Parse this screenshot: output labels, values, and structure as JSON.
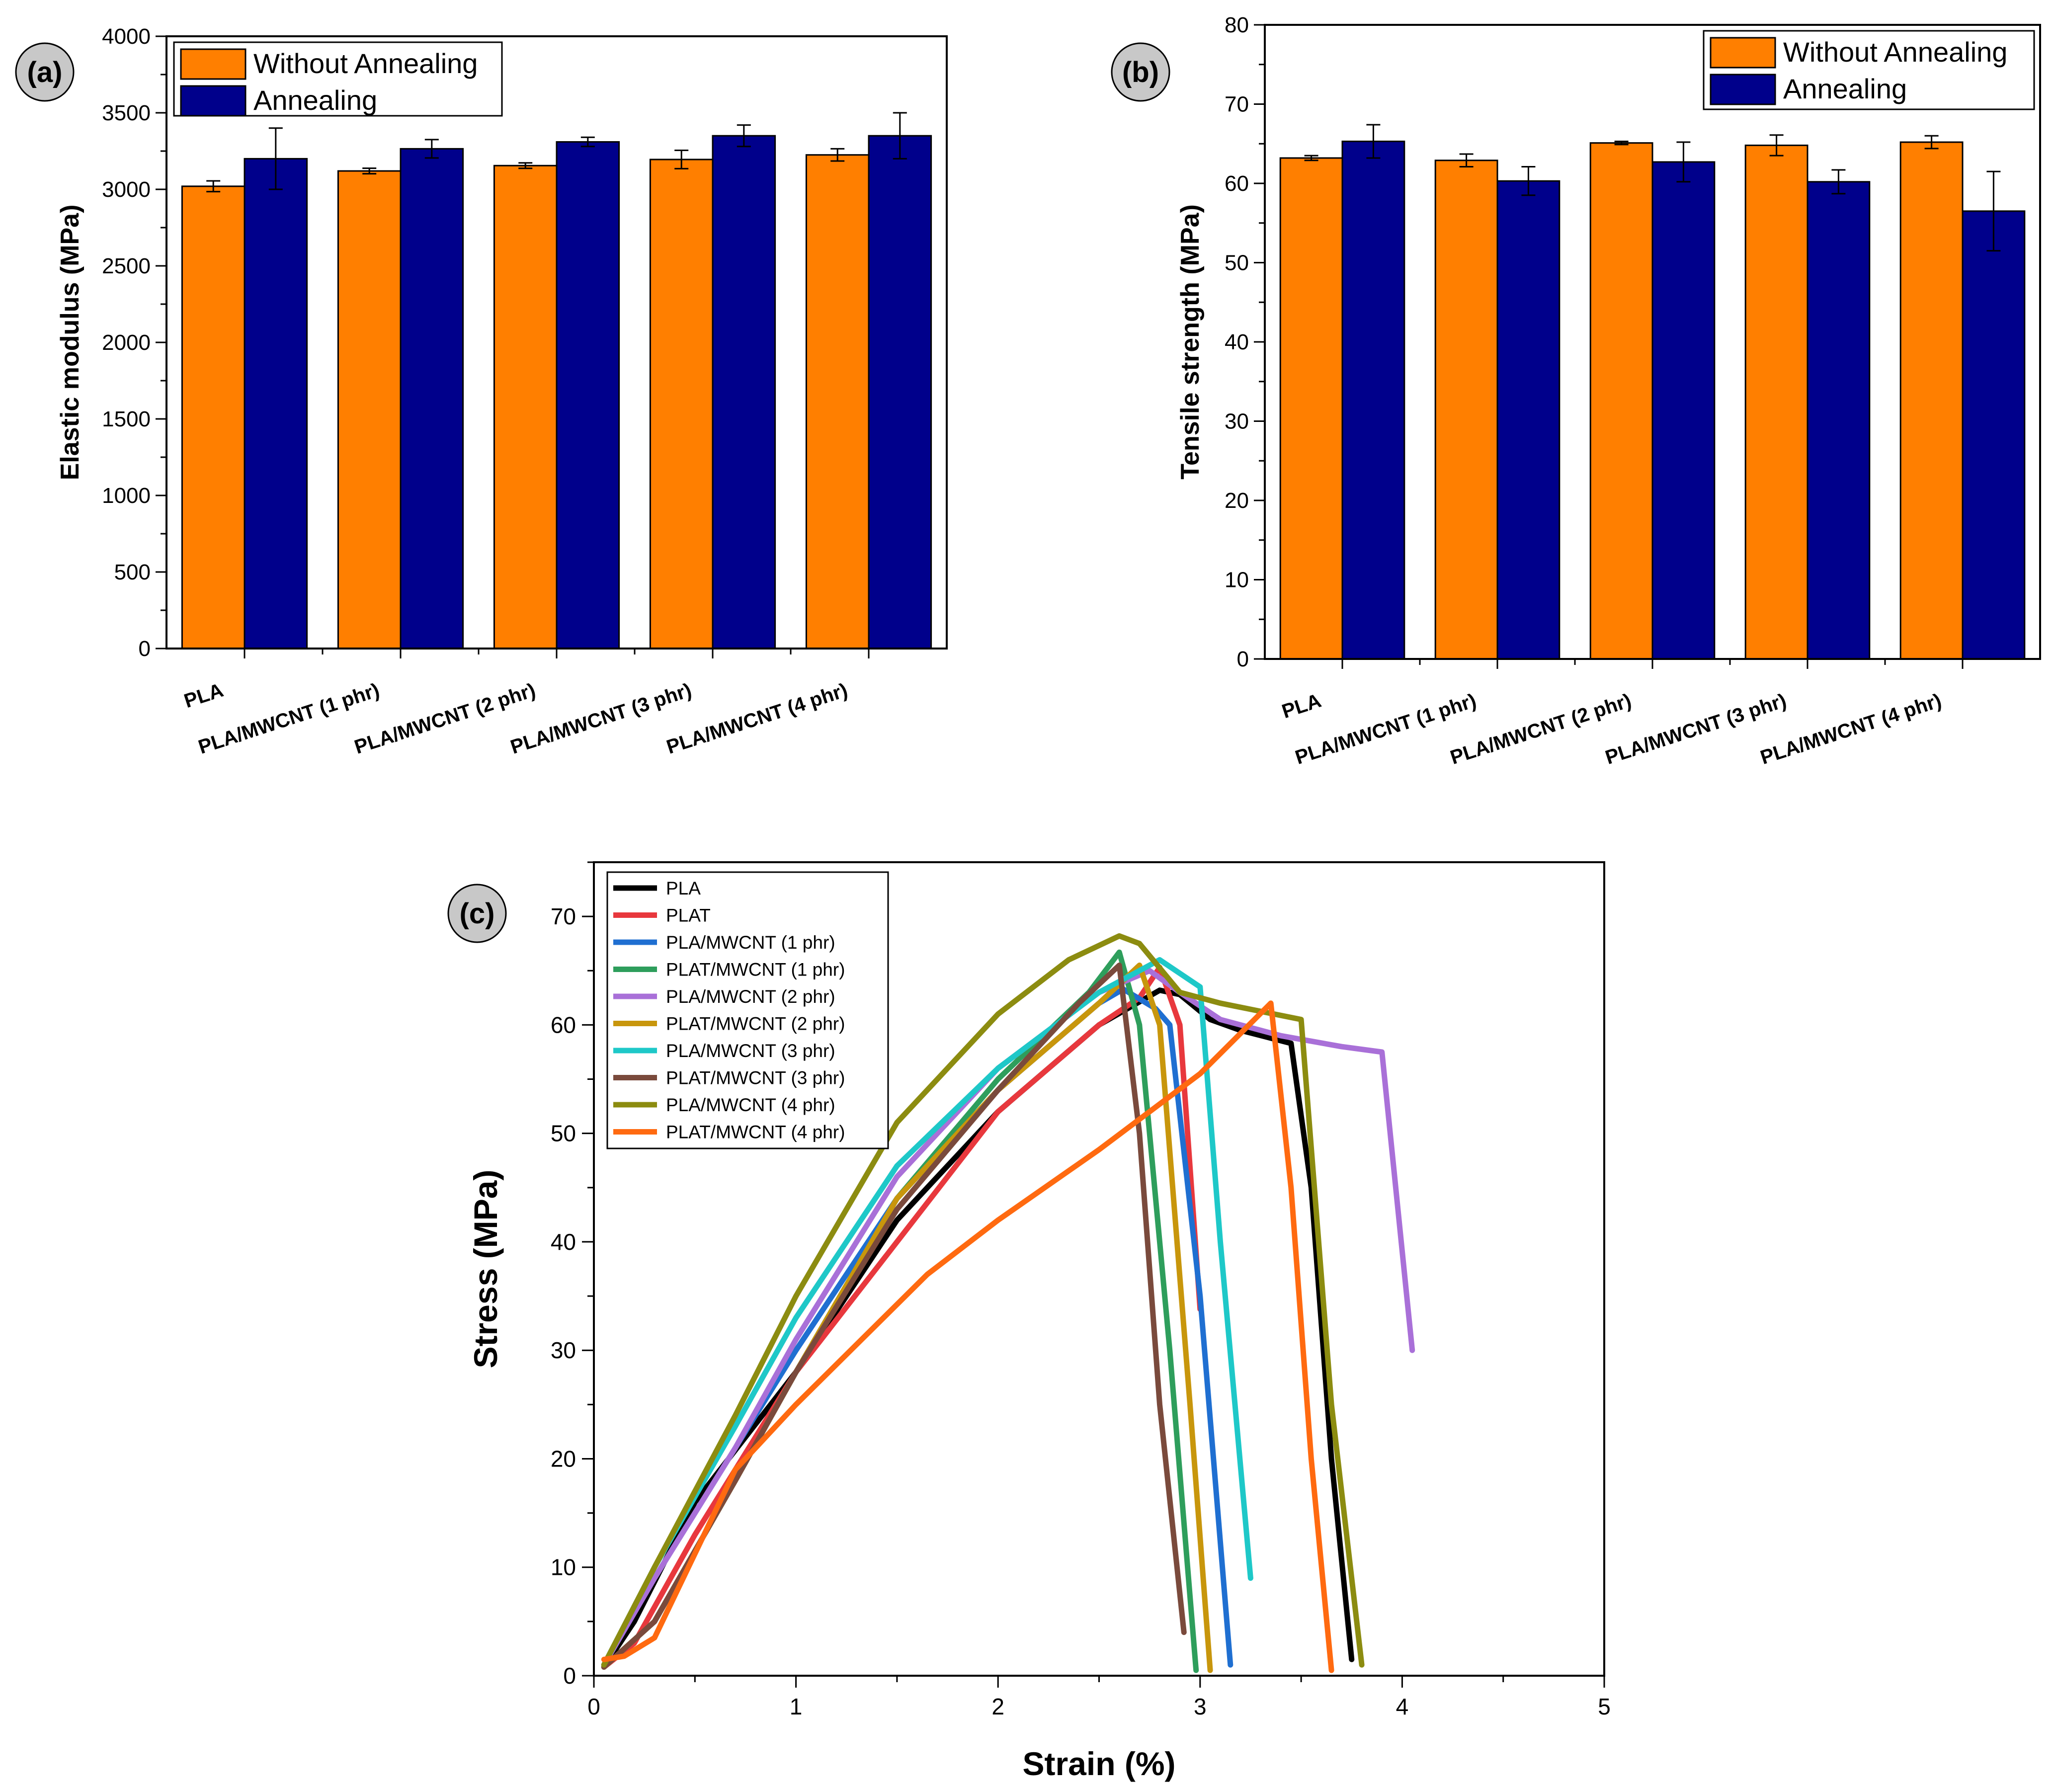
{
  "colors": {
    "without": "#ff7f00",
    "annealing": "#00008b",
    "badge": "#c8c8c8"
  },
  "chart_data": [
    {
      "id": "a",
      "panel_label": "(a)",
      "type": "bar",
      "title": "",
      "xlabel": "",
      "ylabel": "Elastic modulus (MPa)",
      "ylim": [
        0,
        4000
      ],
      "yticks": [
        0,
        500,
        1000,
        1500,
        2000,
        2500,
        3000,
        3500,
        4000
      ],
      "yticks_labels": [
        "0",
        "500",
        "1000",
        "1500",
        "2000",
        "2500",
        "3000",
        "3500",
        "4000"
      ],
      "legend_position": "top-left",
      "categories": [
        "PLA",
        "PLA/MWCNT (1 phr)",
        "PLA/MWCNT (2 phr)",
        "PLA/MWCNT (3 phr)",
        "PLA/MWCNT (4 phr)"
      ],
      "series": [
        {
          "name": "Without Annealing",
          "color": "#ff7f00",
          "values": [
            3020,
            3120,
            3155,
            3195,
            3225
          ],
          "errors": [
            35,
            18,
            18,
            60,
            40
          ]
        },
        {
          "name": "Annealing",
          "color": "#00008b",
          "values": [
            3200,
            3265,
            3310,
            3350,
            3350
          ],
          "errors": [
            200,
            60,
            30,
            70,
            150
          ]
        }
      ]
    },
    {
      "id": "b",
      "panel_label": "(b)",
      "type": "bar",
      "title": "",
      "xlabel": "",
      "ylabel": "Tensile strength (MPa)",
      "ylim": [
        0,
        80
      ],
      "yticks": [
        0,
        10,
        20,
        30,
        40,
        50,
        60,
        70,
        80
      ],
      "yticks_labels": [
        "0",
        "10",
        "20",
        "30",
        "40",
        "50",
        "60",
        "70",
        "80"
      ],
      "legend_position": "top-right",
      "categories": [
        "PLA",
        "PLA/MWCNT (1 phr)",
        "PLA/MWCNT (2 phr)",
        "PLA/MWCNT (3 phr)",
        "PLA/MWCNT (4 phr)"
      ],
      "series": [
        {
          "name": "Without Annealing",
          "color": "#ff7f00",
          "values": [
            63.2,
            62.9,
            65.1,
            64.8,
            65.2
          ],
          "errors": [
            0.3,
            0.8,
            0.2,
            1.3,
            0.8
          ]
        },
        {
          "name": "Annealing",
          "color": "#00008b",
          "values": [
            65.3,
            60.3,
            62.7,
            60.2,
            56.5
          ],
          "errors": [
            2.1,
            1.8,
            2.5,
            1.5,
            5.0
          ]
        }
      ]
    },
    {
      "id": "c",
      "panel_label": "(c)",
      "type": "line",
      "title": "",
      "xlabel": "Strain (%)",
      "ylabel": "Stress (MPa)",
      "xlim": [
        0,
        5
      ],
      "ylim": [
        0,
        75
      ],
      "xticks": [
        0,
        1,
        2,
        3,
        4,
        5
      ],
      "xticks_labels": [
        "0",
        "1",
        "2",
        "3",
        "4",
        "5"
      ],
      "yticks": [
        0,
        10,
        20,
        30,
        40,
        50,
        60,
        70
      ],
      "yticks_labels": [
        "0",
        "10",
        "20",
        "30",
        "40",
        "50",
        "60",
        "70"
      ],
      "legend_position": "top-left",
      "series": [
        {
          "name": "PLA",
          "color": "#000000",
          "points": [
            [
              0.05,
              0.8
            ],
            [
              0.2,
              5
            ],
            [
              0.5,
              16
            ],
            [
              1.0,
              28
            ],
            [
              1.5,
              42
            ],
            [
              2.0,
              52
            ],
            [
              2.5,
              60
            ],
            [
              2.8,
              63.2
            ],
            [
              2.9,
              62.8
            ],
            [
              3.05,
              60.5
            ],
            [
              3.2,
              59.5
            ],
            [
              3.45,
              58.3
            ],
            [
              3.55,
              45
            ],
            [
              3.65,
              20
            ],
            [
              3.75,
              1.5
            ]
          ]
        },
        {
          "name": "PLAT",
          "color": "#e8383d",
          "points": [
            [
              0.05,
              0.8
            ],
            [
              0.2,
              3
            ],
            [
              0.5,
              13
            ],
            [
              1.0,
              28
            ],
            [
              1.5,
              40
            ],
            [
              2.0,
              52
            ],
            [
              2.5,
              60
            ],
            [
              2.7,
              62.5
            ],
            [
              2.8,
              65.3
            ],
            [
              2.9,
              60
            ],
            [
              3.0,
              33.8
            ]
          ]
        },
        {
          "name": "PLA/MWCNT (1 phr)",
          "color": "#1f6fd1",
          "points": [
            [
              0.05,
              1
            ],
            [
              0.3,
              9
            ],
            [
              0.7,
              21
            ],
            [
              1.0,
              30
            ],
            [
              1.5,
              44
            ],
            [
              2.0,
              54
            ],
            [
              2.5,
              62
            ],
            [
              2.62,
              63.3
            ],
            [
              2.78,
              61.5
            ],
            [
              2.85,
              60
            ],
            [
              3.0,
              35
            ],
            [
              3.15,
              1
            ]
          ]
        },
        {
          "name": "PLAT/MWCNT (1 phr)",
          "color": "#2e9e5c",
          "points": [
            [
              0.05,
              0.8
            ],
            [
              0.3,
              5
            ],
            [
              0.7,
              18
            ],
            [
              1.0,
              28
            ],
            [
              1.5,
              44
            ],
            [
              2.0,
              55
            ],
            [
              2.45,
              63
            ],
            [
              2.6,
              66.7
            ],
            [
              2.7,
              60
            ],
            [
              2.85,
              30
            ],
            [
              2.98,
              0.5
            ]
          ]
        },
        {
          "name": "PLA/MWCNT (2 phr)",
          "color": "#a970d8",
          "points": [
            [
              0.05,
              1
            ],
            [
              0.3,
              9
            ],
            [
              0.7,
              21
            ],
            [
              1.0,
              31
            ],
            [
              1.5,
              46
            ],
            [
              2.0,
              56
            ],
            [
              2.5,
              63
            ],
            [
              2.75,
              65
            ],
            [
              2.9,
              63
            ],
            [
              3.1,
              60.5
            ],
            [
              3.4,
              59
            ],
            [
              3.7,
              58
            ],
            [
              3.9,
              57.5
            ],
            [
              4.05,
              30
            ]
          ]
        },
        {
          "name": "PLAT/MWCNT (2 phr)",
          "color": "#c8960c",
          "points": [
            [
              0.05,
              0.8
            ],
            [
              0.3,
              5
            ],
            [
              0.7,
              18
            ],
            [
              1.0,
              28
            ],
            [
              1.5,
              44
            ],
            [
              2.0,
              54
            ],
            [
              2.5,
              62
            ],
            [
              2.7,
              65.5
            ],
            [
              2.8,
              60
            ],
            [
              2.95,
              25
            ],
            [
              3.05,
              0.5
            ]
          ]
        },
        {
          "name": "PLA/MWCNT (3 phr)",
          "color": "#1ec8c8",
          "points": [
            [
              0.05,
              1
            ],
            [
              0.3,
              10
            ],
            [
              0.7,
              23
            ],
            [
              1.0,
              33
            ],
            [
              1.5,
              47
            ],
            [
              2.0,
              56
            ],
            [
              2.5,
              63
            ],
            [
              2.8,
              66
            ],
            [
              3.0,
              63.5
            ],
            [
              3.1,
              40
            ],
            [
              3.25,
              9
            ]
          ]
        },
        {
          "name": "PLAT/MWCNT (3 phr)",
          "color": "#7a4a3c",
          "points": [
            [
              0.05,
              0.8
            ],
            [
              0.3,
              5
            ],
            [
              0.7,
              18
            ],
            [
              1.0,
              28
            ],
            [
              1.5,
              43
            ],
            [
              2.0,
              54
            ],
            [
              2.4,
              62
            ],
            [
              2.6,
              65.5
            ],
            [
              2.7,
              50
            ],
            [
              2.8,
              25
            ],
            [
              2.92,
              4
            ]
          ]
        },
        {
          "name": "PLA/MWCNT (4 phr)",
          "color": "#8c8c10",
          "points": [
            [
              0.05,
              1
            ],
            [
              0.3,
              10
            ],
            [
              0.7,
              24
            ],
            [
              1.0,
              35
            ],
            [
              1.5,
              51
            ],
            [
              2.0,
              61
            ],
            [
              2.35,
              66
            ],
            [
              2.6,
              68.2
            ],
            [
              2.7,
              67.5
            ],
            [
              2.9,
              63
            ],
            [
              3.1,
              62
            ],
            [
              3.5,
              60.5
            ],
            [
              3.65,
              25
            ],
            [
              3.8,
              1
            ]
          ]
        },
        {
          "name": "PLAT/MWCNT (4 phr)",
          "color": "#ff6a10",
          "points": [
            [
              0.05,
              1.5
            ],
            [
              0.15,
              1.8
            ],
            [
              0.3,
              3.5
            ],
            [
              0.7,
              19
            ],
            [
              1.0,
              25
            ],
            [
              1.65,
              37
            ],
            [
              2.0,
              42
            ],
            [
              2.5,
              48.5
            ],
            [
              3.0,
              55.5
            ],
            [
              3.35,
              62
            ],
            [
              3.45,
              45
            ],
            [
              3.55,
              20
            ],
            [
              3.65,
              0.5
            ]
          ]
        }
      ]
    }
  ]
}
